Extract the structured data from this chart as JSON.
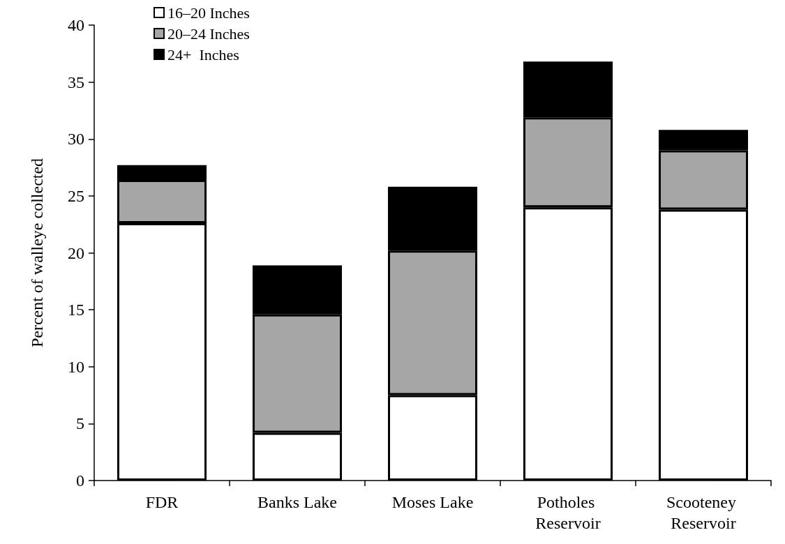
{
  "chart_data": {
    "type": "bar",
    "stacked": true,
    "ylabel": "Percent of walleye collected",
    "categories": [
      "FDR",
      "Banks Lake",
      "Moses Lake",
      "Potholes Reservoir",
      "Scooteney Reservoir"
    ],
    "series": [
      {
        "name": "16–20 Inches",
        "color": "#ffffff",
        "values": [
          22.6,
          4.2,
          7.5,
          24.0,
          23.8
        ]
      },
      {
        "name": "20–24 Inches",
        "color": "#a6a6a6",
        "values": [
          3.8,
          10.4,
          12.7,
          7.9,
          5.2
        ]
      },
      {
        "name": "24+  Inches",
        "color": "#000000",
        "values": [
          1.3,
          4.3,
          5.6,
          4.9,
          1.8
        ]
      }
    ],
    "ylim": [
      0,
      40
    ],
    "yticks": [
      0,
      5,
      10,
      15,
      20,
      25,
      30,
      35,
      40
    ],
    "grid": false,
    "legend": "top left"
  }
}
